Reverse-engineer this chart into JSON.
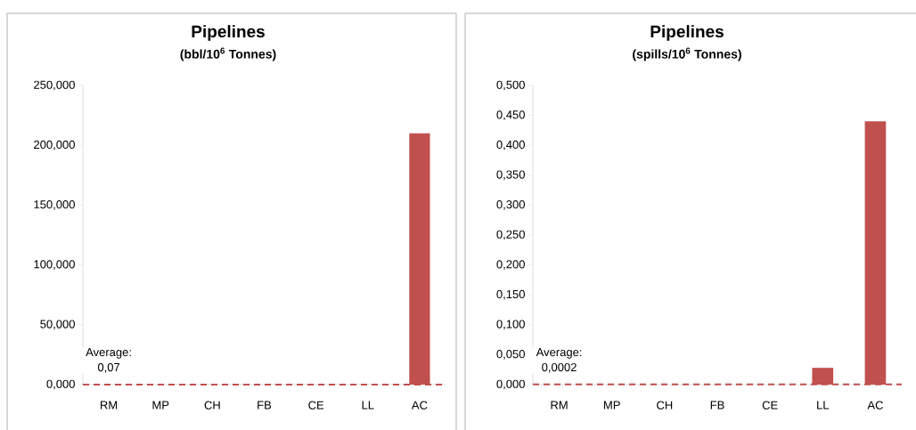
{
  "chart_data": [
    {
      "type": "bar",
      "title": "Pipelines",
      "subtitle": "(bbl/10$^{6}$ Tonnes)",
      "categories": [
        "RM",
        "MP",
        "CH",
        "FB",
        "CE",
        "LL",
        "AC"
      ],
      "values": [
        0,
        0,
        0,
        0,
        0,
        0,
        210
      ],
      "color": "#c0504d",
      "ylim": [
        0,
        250
      ],
      "yticks": [
        {
          "value": 0,
          "label": "0,000"
        },
        {
          "value": 50,
          "label": "50,000"
        },
        {
          "value": 100,
          "label": "100,000"
        },
        {
          "value": 150,
          "label": "150,000"
        },
        {
          "value": 200,
          "label": "200,000"
        },
        {
          "value": 250,
          "label": "250,000"
        }
      ],
      "ref_lines": [
        {
          "axis": "y",
          "value": 0.07,
          "label": "Average: 0,07",
          "color": "#c0504d",
          "line_style": "dashed"
        }
      ]
    },
    {
      "type": "bar",
      "title": "Pipelines",
      "subtitle": "(spills/10$^{6}$ Tonnes)",
      "categories": [
        "RM",
        "MP",
        "CH",
        "FB",
        "CE",
        "LL",
        "AC"
      ],
      "values": [
        0,
        0,
        0,
        0,
        0,
        0.028,
        0.44
      ],
      "color": "#c0504d",
      "ylim": [
        0,
        0.5
      ],
      "yticks": [
        {
          "value": 0,
          "label": "0,000"
        },
        {
          "value": 0.05,
          "label": "0,050"
        },
        {
          "value": 0.1,
          "label": "0,100"
        },
        {
          "value": 0.15,
          "label": "0,150"
        },
        {
          "value": 0.2,
          "label": "0,200"
        },
        {
          "value": 0.25,
          "label": "0,250"
        },
        {
          "value": 0.3,
          "label": "0,300"
        },
        {
          "value": 0.35,
          "label": "0,350"
        },
        {
          "value": 0.4,
          "label": "0,400"
        },
        {
          "value": 0.45,
          "label": "0,450"
        },
        {
          "value": 0.5,
          "label": "0,500"
        }
      ],
      "ref_lines": [
        {
          "axis": "y",
          "value": 0.0002,
          "label": "Average: 0,0002",
          "color": "#c0504d",
          "line_style": "dashed"
        }
      ]
    }
  ]
}
